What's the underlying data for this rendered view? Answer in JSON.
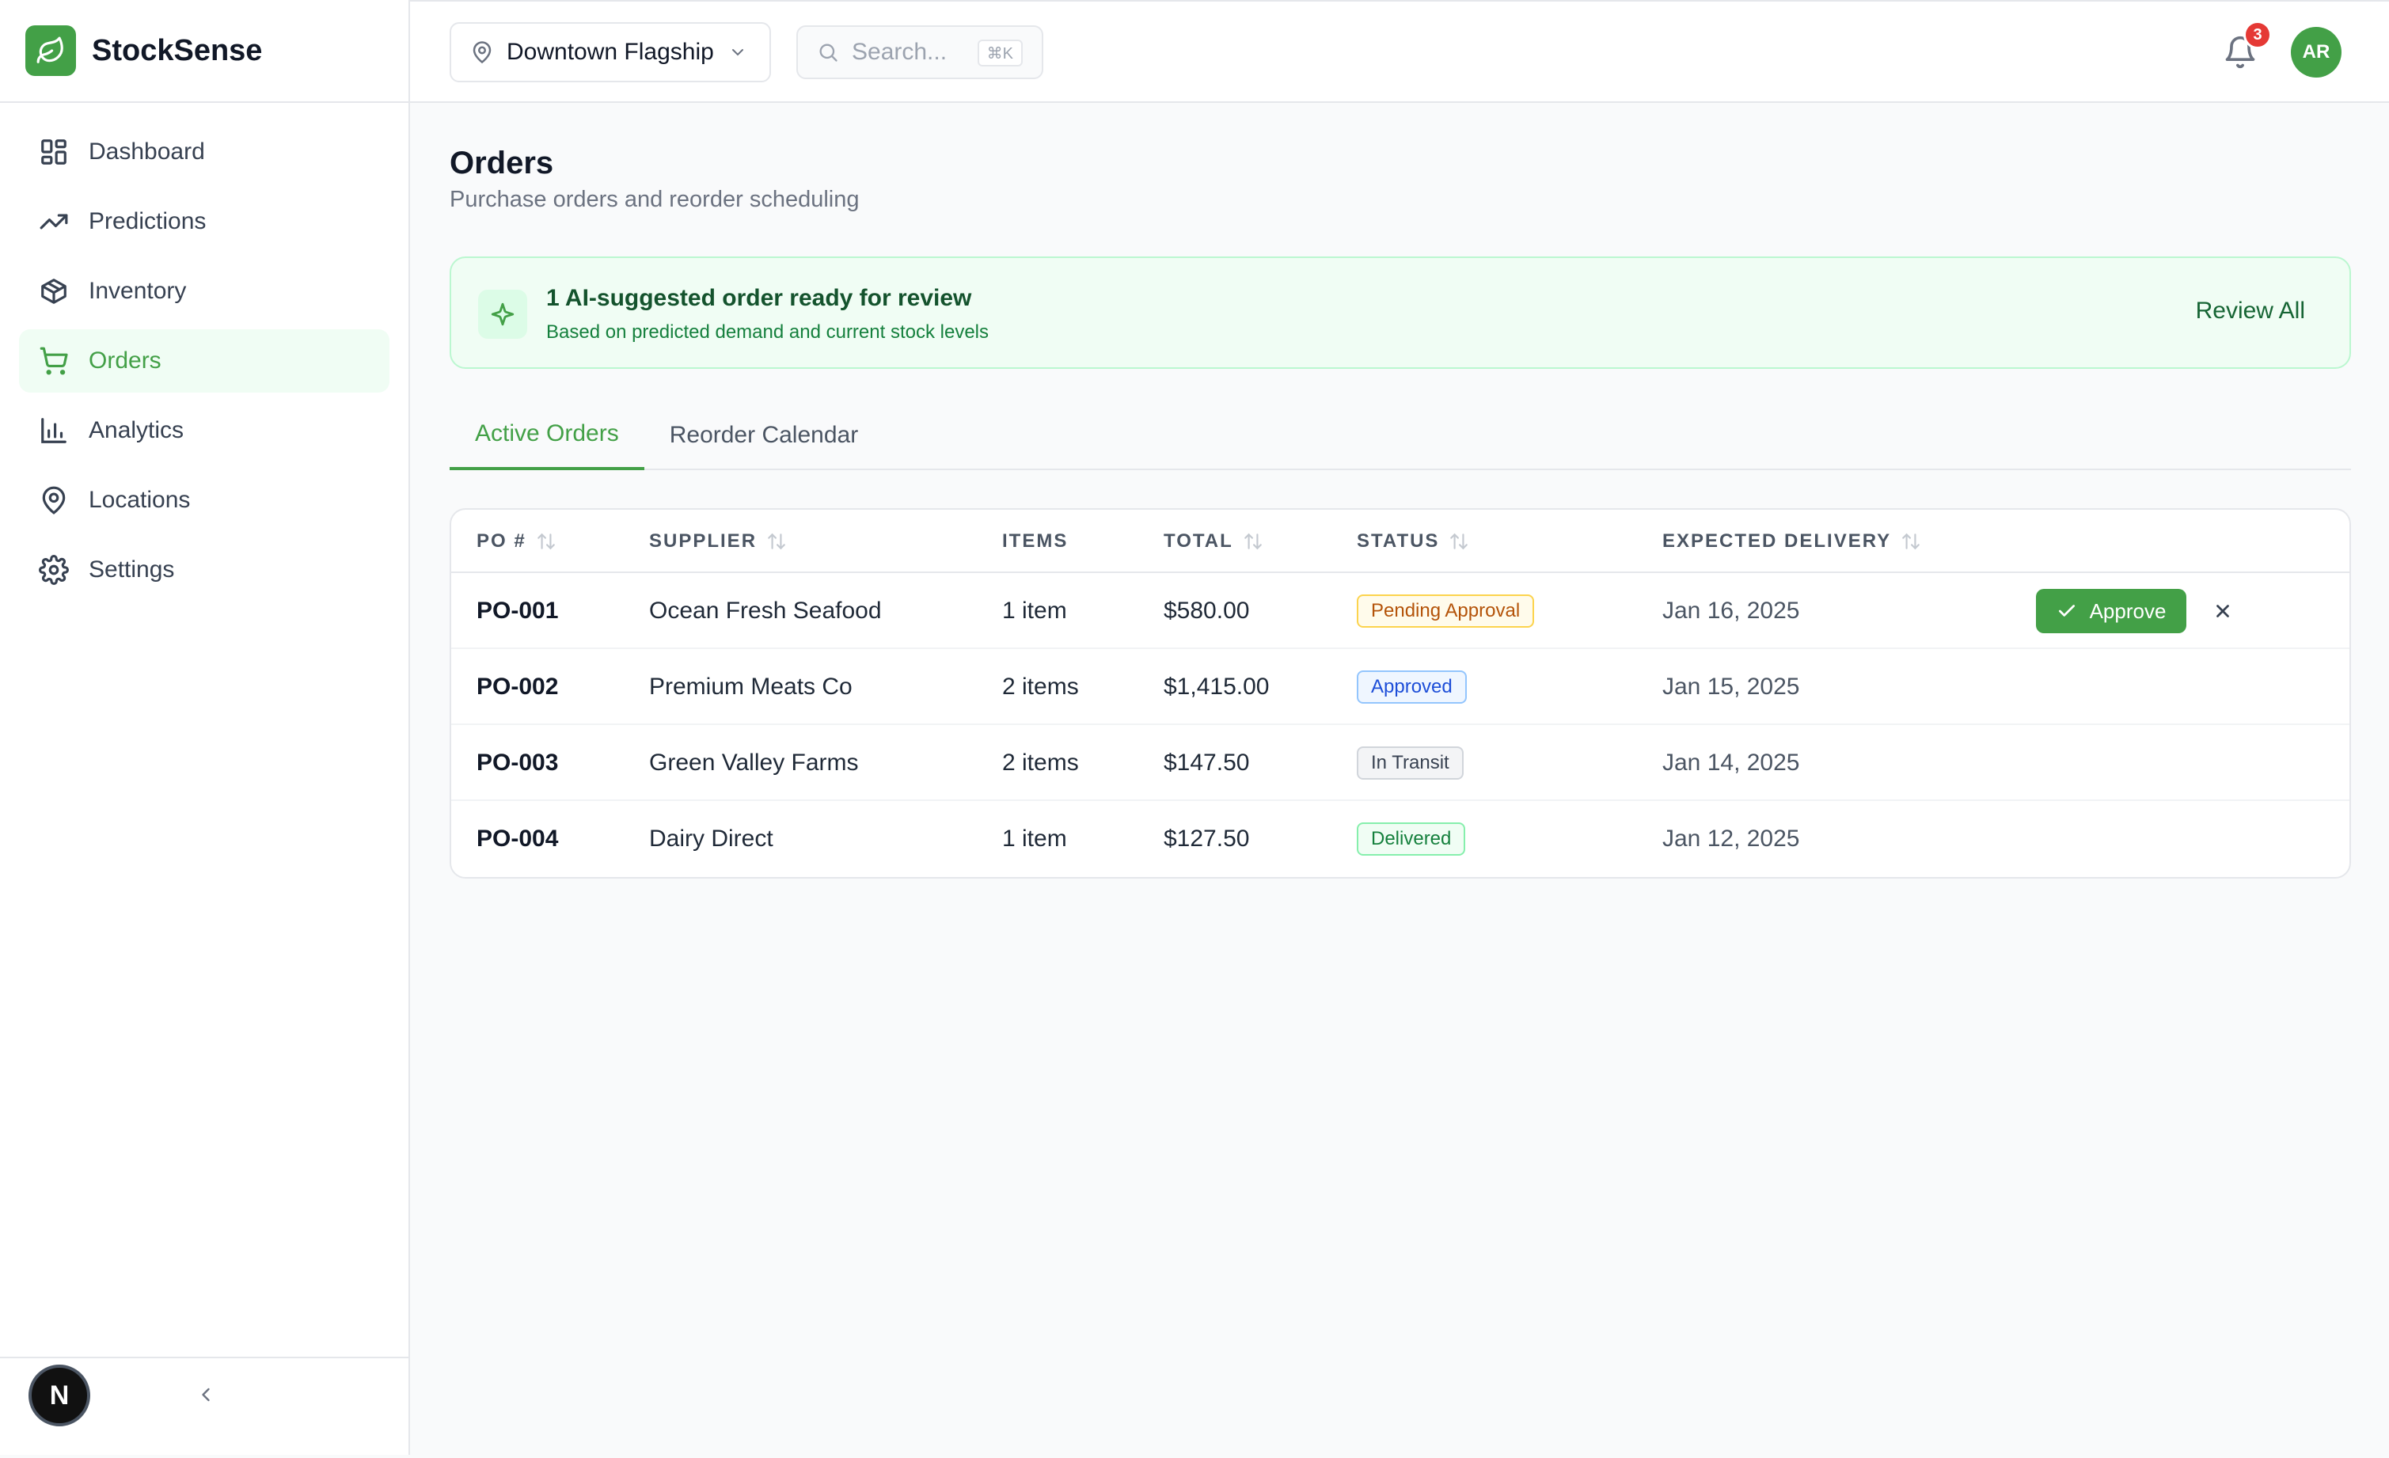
{
  "brand": {
    "name": "StockSense"
  },
  "sidebar": {
    "items": [
      {
        "label": "Dashboard",
        "icon": "dashboard-icon"
      },
      {
        "label": "Predictions",
        "icon": "trending-up-icon"
      },
      {
        "label": "Inventory",
        "icon": "box-icon"
      },
      {
        "label": "Orders",
        "icon": "cart-icon",
        "active": true
      },
      {
        "label": "Analytics",
        "icon": "bar-chart-icon"
      },
      {
        "label": "Locations",
        "icon": "map-pin-icon"
      },
      {
        "label": "Settings",
        "icon": "gear-icon"
      }
    ],
    "footer_avatar": "N"
  },
  "topbar": {
    "location": "Downtown Flagship",
    "search_placeholder": "Search...",
    "search_shortcut": "⌘K",
    "notification_count": "3",
    "user_initials": "AR"
  },
  "page": {
    "title": "Orders",
    "subtitle": "Purchase orders and reorder scheduling"
  },
  "ai_banner": {
    "title": "1 AI-suggested order ready for review",
    "subtitle": "Based on predicted demand and current stock levels",
    "action": "Review All"
  },
  "tabs": [
    {
      "label": "Active Orders",
      "active": true
    },
    {
      "label": "Reorder Calendar"
    }
  ],
  "table": {
    "headers": {
      "po": "PO #",
      "supplier": "SUPPLIER",
      "items": "ITEMS",
      "total": "TOTAL",
      "status": "STATUS",
      "delivery": "EXPECTED DELIVERY"
    },
    "rows": [
      {
        "po": "PO-001",
        "supplier": "Ocean Fresh Seafood",
        "items": "1 item",
        "total": "$580.00",
        "status": "Pending Approval",
        "delivery": "Jan 16, 2025"
      },
      {
        "po": "PO-002",
        "supplier": "Premium Meats Co",
        "items": "2 items",
        "total": "$1,415.00",
        "status": "Approved",
        "delivery": "Jan 15, 2025"
      },
      {
        "po": "PO-003",
        "supplier": "Green Valley Farms",
        "items": "2 items",
        "total": "$147.50",
        "status": "In Transit",
        "delivery": "Jan 14, 2025"
      },
      {
        "po": "PO-004",
        "supplier": "Dairy Direct",
        "items": "1 item",
        "total": "$127.50",
        "status": "Delivered",
        "delivery": "Jan 12, 2025"
      }
    ],
    "approve_label": "Approve"
  },
  "colors": {
    "accent": "#43a047",
    "pending": "#b45309",
    "approved": "#1d4ed8",
    "delivered": "#15803d",
    "badge_red": "#e53935"
  }
}
